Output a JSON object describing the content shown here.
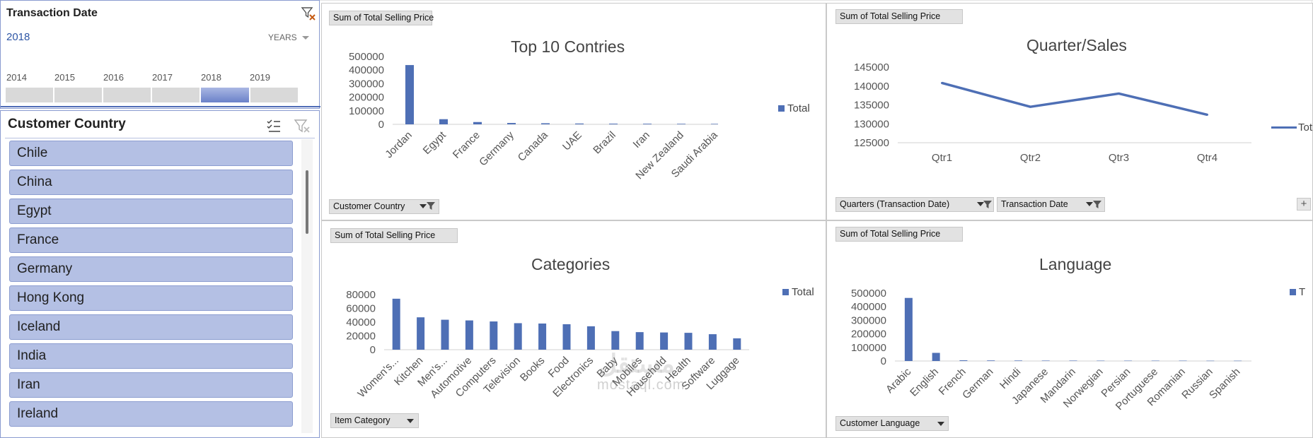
{
  "timeline": {
    "title": "Transaction Date",
    "selected": "2018",
    "level": "YEARS",
    "years": [
      "2014",
      "2015",
      "2016",
      "2017",
      "2018",
      "2019"
    ],
    "active_year": "2018"
  },
  "country_slicer": {
    "title": "Customer Country",
    "items": [
      "Chile",
      "China",
      "Egypt",
      "France",
      "Germany",
      "Hong Kong",
      "Iceland",
      "India",
      "Iran",
      "Ireland"
    ]
  },
  "charts": {
    "countries": {
      "field_button": "Sum of Total Selling Price",
      "axis_button": "Customer Country",
      "legend": "Total"
    },
    "quarters": {
      "field_button": "Sum of Total Selling Price",
      "axis_button_1": "Quarters (Transaction Date)",
      "axis_button_2": "Transaction Date",
      "legend": "Tot"
    },
    "categories": {
      "field_button": "Sum of Total Selling Price",
      "axis_button": "Item Category",
      "legend": "Total"
    },
    "language": {
      "field_button": "Sum of Total Selling Price",
      "axis_button": "Customer Language",
      "legend": "T"
    }
  },
  "colors": {
    "series": "#4e6fb5",
    "slicer_item": "#b4c0e4",
    "timeline_active": "#6b81c9"
  },
  "icons": [
    "clear-filter-icon",
    "multi-select-icon",
    "funnel-icon",
    "dropdown-arrow-icon",
    "plus-icon"
  ],
  "watermark": {
    "text": "mostaql.com",
    "logo": "مستقل"
  },
  "chart_data": [
    {
      "type": "bar",
      "title": "Top 10 Contries",
      "categories": [
        "Jordan",
        "Egypt",
        "France",
        "Germany",
        "Canada",
        "UAE",
        "Brazil",
        "Iran",
        "New Zealand",
        "Saudi Arabia"
      ],
      "series": [
        {
          "name": "Total",
          "values": [
            437000,
            38000,
            17000,
            10000,
            8000,
            6000,
            5000,
            4500,
            4000,
            3500
          ]
        }
      ],
      "ylim": [
        0,
        500000
      ],
      "yticks": [
        0,
        100000,
        200000,
        300000,
        400000,
        500000
      ],
      "legend": "right"
    },
    {
      "type": "line",
      "title": "Quarter/Sales",
      "categories": [
        "Qtr1",
        "Qtr2",
        "Qtr3",
        "Qtr4"
      ],
      "series": [
        {
          "name": "Total",
          "values": [
            140800,
            134500,
            138000,
            132400
          ]
        }
      ],
      "ylim": [
        125000,
        145000
      ],
      "yticks": [
        125000,
        130000,
        135000,
        140000,
        145000
      ],
      "legend": "right"
    },
    {
      "type": "bar",
      "title": "Categories",
      "categories": [
        "Women's...",
        "Kitchen",
        "Men's...",
        "Automotive",
        "Computers",
        "Television",
        "Books",
        "Food",
        "Electronics",
        "Baby",
        "Mobiles",
        "Household",
        "Health",
        "Software",
        "Luggage"
      ],
      "series": [
        {
          "name": "Total",
          "values": [
            74000,
            47000,
            43500,
            42500,
            41000,
            38500,
            38000,
            37000,
            34000,
            27000,
            25500,
            25000,
            24500,
            22500,
            16500
          ]
        }
      ],
      "ylim": [
        0,
        80000
      ],
      "yticks": [
        0,
        20000,
        40000,
        60000,
        80000
      ],
      "legend": "right"
    },
    {
      "type": "bar",
      "title": "Language",
      "categories": [
        "Arabic",
        "English",
        "French",
        "German",
        "Hindi",
        "Japanese",
        "Mandarin",
        "Norwegian",
        "Persian",
        "Portuguese",
        "Romanian",
        "Russian",
        "Spanish"
      ],
      "series": [
        {
          "name": "Total",
          "values": [
            465000,
            60000,
            5000,
            4000,
            3500,
            3000,
            3000,
            2500,
            2500,
            2500,
            2500,
            2000,
            2000
          ]
        }
      ],
      "ylim": [
        0,
        500000
      ],
      "yticks": [
        0,
        100000,
        200000,
        300000,
        400000,
        500000
      ],
      "legend": "right"
    }
  ]
}
